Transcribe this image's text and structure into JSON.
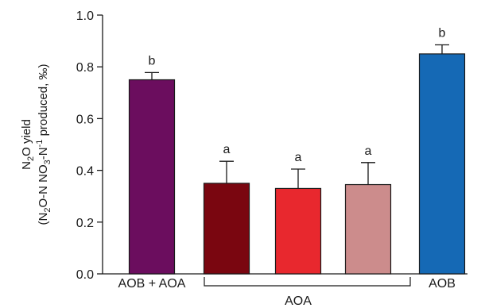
{
  "chart_data": {
    "type": "bar",
    "ylabel": {
      "line1": {
        "main": "N",
        "sub": "2",
        "rest": "O yield"
      },
      "line2": {
        "p1": "(N",
        "s1": "2",
        "p2": "O-N NO",
        "s2": "3",
        "p3": "-N",
        "sup": "-1",
        "p4": " produced, ‰)"
      }
    },
    "ylim": [
      0,
      1.0
    ],
    "yticks": [
      "0.0",
      "0.2",
      "0.4",
      "0.6",
      "0.8",
      "1.0"
    ],
    "bars": [
      {
        "value": 0.75,
        "error": 0.028,
        "color": "#6b0d5e",
        "letter": "b"
      },
      {
        "value": 0.35,
        "error": 0.085,
        "color": "#7a0610",
        "letter": "a"
      },
      {
        "value": 0.33,
        "error": 0.075,
        "color": "#e8282e",
        "letter": "a"
      },
      {
        "value": 0.345,
        "error": 0.085,
        "color": "#cc8c8c",
        "letter": "a"
      },
      {
        "value": 0.85,
        "error": 0.035,
        "color": "#1569b5",
        "letter": "b"
      }
    ],
    "category_labels": {
      "aob_aoa": "AOB + AOA",
      "aob": "AOB",
      "aoa_group": "AOA"
    },
    "grid": false
  }
}
